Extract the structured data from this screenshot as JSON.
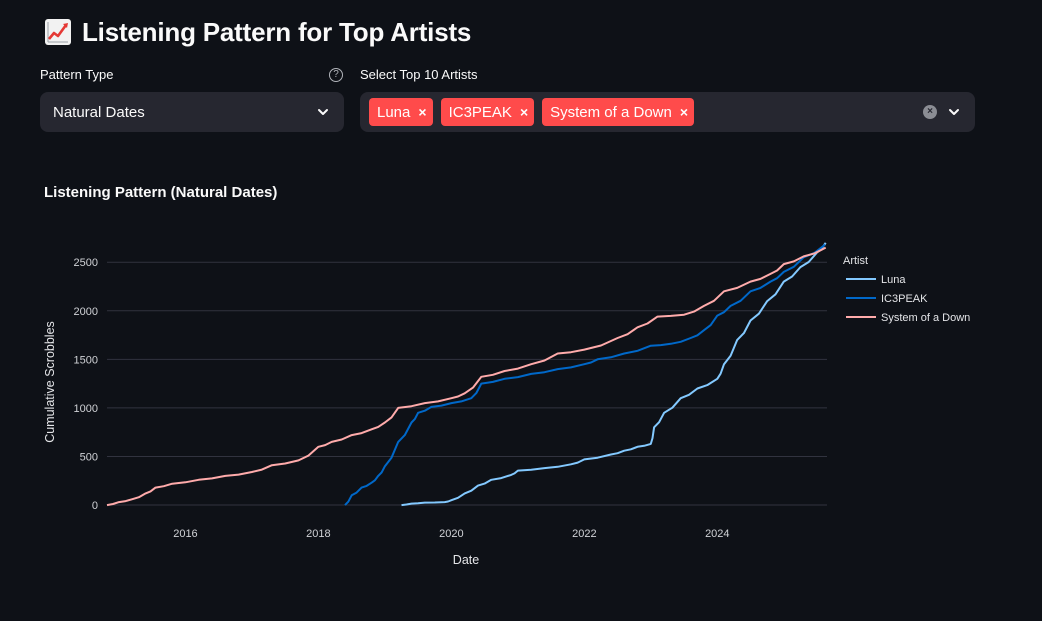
{
  "page": {
    "title": "Listening Pattern for Top Artists",
    "title_icon": "chart-increasing-icon"
  },
  "pattern_type": {
    "label": "Pattern Type",
    "value": "Natural Dates",
    "help_icon": "help-circle-icon"
  },
  "artists_select": {
    "label": "Select Top 10 Artists",
    "selected": [
      "Luna",
      "IC3PEAK",
      "System of a Down"
    ],
    "tag_color": "#ff4b4b"
  },
  "chart_data": {
    "type": "line",
    "title": "Listening Pattern (Natural Dates)",
    "xlabel": "Date",
    "ylabel": "Cumulative Scrobbles",
    "xlim": [
      2014.82,
      2025.65
    ],
    "ylim": [
      -20,
      2780
    ],
    "x_ticks": [
      2016,
      2018,
      2020,
      2022,
      2024
    ],
    "x_tick_labels": [
      "2016",
      "2018",
      "2020",
      "2022",
      "2024"
    ],
    "y_ticks": [
      0,
      500,
      1000,
      1500,
      2000,
      2500
    ],
    "y_tick_labels": [
      "0",
      "500",
      "1000",
      "1500",
      "2000",
      "2500"
    ],
    "grid": "horizontal",
    "legend_title": "Artist",
    "legend_position": "right",
    "series": [
      {
        "name": "Luna",
        "color": "#83c9ff",
        "points": [
          [
            2019.25,
            0
          ],
          [
            2019.4,
            15
          ],
          [
            2019.6,
            25
          ],
          [
            2019.9,
            30
          ],
          [
            2020.0,
            50
          ],
          [
            2020.2,
            120
          ],
          [
            2020.4,
            200
          ],
          [
            2020.6,
            260
          ],
          [
            2020.9,
            310
          ],
          [
            2021.0,
            355
          ],
          [
            2021.4,
            380
          ],
          [
            2021.8,
            420
          ],
          [
            2022.0,
            470
          ],
          [
            2022.4,
            520
          ],
          [
            2022.6,
            560
          ],
          [
            2022.8,
            600
          ],
          [
            2023.0,
            630
          ],
          [
            2023.05,
            800
          ],
          [
            2023.2,
            950
          ],
          [
            2023.45,
            1100
          ],
          [
            2023.7,
            1200
          ],
          [
            2024.0,
            1300
          ],
          [
            2024.1,
            1450
          ],
          [
            2024.3,
            1700
          ],
          [
            2024.5,
            1900
          ],
          [
            2024.75,
            2100
          ],
          [
            2025.0,
            2300
          ],
          [
            2025.25,
            2450
          ],
          [
            2025.5,
            2600
          ],
          [
            2025.63,
            2700
          ]
        ]
      },
      {
        "name": "IC3PEAK",
        "color": "#0068c9",
        "points": [
          [
            2018.4,
            0
          ],
          [
            2018.5,
            100
          ],
          [
            2018.65,
            180
          ],
          [
            2018.8,
            230
          ],
          [
            2018.9,
            300
          ],
          [
            2019.0,
            400
          ],
          [
            2019.2,
            650
          ],
          [
            2019.4,
            850
          ],
          [
            2019.5,
            950
          ],
          [
            2019.7,
            1010
          ],
          [
            2020.0,
            1050
          ],
          [
            2020.3,
            1100
          ],
          [
            2020.45,
            1250
          ],
          [
            2020.8,
            1300
          ],
          [
            2021.2,
            1350
          ],
          [
            2021.6,
            1400
          ],
          [
            2022.0,
            1450
          ],
          [
            2022.2,
            1500
          ],
          [
            2022.6,
            1560
          ],
          [
            2023.0,
            1640
          ],
          [
            2023.3,
            1660
          ],
          [
            2023.6,
            1720
          ],
          [
            2023.8,
            1800
          ],
          [
            2024.0,
            1950
          ],
          [
            2024.2,
            2050
          ],
          [
            2024.5,
            2200
          ],
          [
            2024.8,
            2300
          ],
          [
            2025.0,
            2400
          ],
          [
            2025.3,
            2550
          ],
          [
            2025.62,
            2680
          ]
        ]
      },
      {
        "name": "System of a Down",
        "color": "#ffabab",
        "points": [
          [
            2014.82,
            0
          ],
          [
            2015.0,
            30
          ],
          [
            2015.2,
            60
          ],
          [
            2015.4,
            120
          ],
          [
            2015.55,
            180
          ],
          [
            2015.8,
            220
          ],
          [
            2016.2,
            260
          ],
          [
            2016.6,
            300
          ],
          [
            2017.0,
            340
          ],
          [
            2017.3,
            410
          ],
          [
            2017.7,
            460
          ],
          [
            2018.0,
            600
          ],
          [
            2018.2,
            650
          ],
          [
            2018.5,
            720
          ],
          [
            2018.8,
            780
          ],
          [
            2019.0,
            850
          ],
          [
            2019.2,
            1000
          ],
          [
            2019.6,
            1050
          ],
          [
            2020.0,
            1100
          ],
          [
            2020.2,
            1150
          ],
          [
            2020.45,
            1320
          ],
          [
            2020.8,
            1380
          ],
          [
            2021.2,
            1450
          ],
          [
            2021.6,
            1560
          ],
          [
            2022.0,
            1600
          ],
          [
            2022.5,
            1720
          ],
          [
            2022.8,
            1830
          ],
          [
            2023.1,
            1940
          ],
          [
            2023.5,
            1960
          ],
          [
            2023.8,
            2050
          ],
          [
            2024.1,
            2200
          ],
          [
            2024.5,
            2300
          ],
          [
            2024.8,
            2380
          ],
          [
            2025.0,
            2480
          ],
          [
            2025.3,
            2560
          ],
          [
            2025.63,
            2650
          ]
        ]
      }
    ]
  }
}
